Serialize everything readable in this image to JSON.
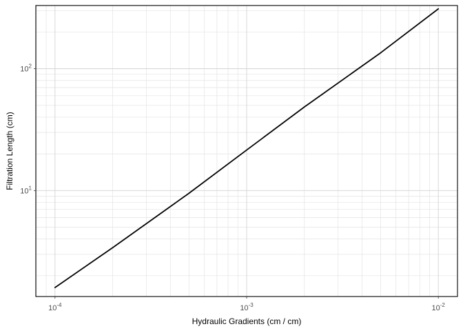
{
  "chart_data": {
    "type": "line",
    "title": "",
    "xlabel": "Hydraulic Gradients (cm / cm)",
    "ylabel": "Filtration Length (cm)",
    "x_scale": "log10",
    "y_scale": "log10",
    "xlim": [
      0.0001,
      0.01
    ],
    "ylim": [
      1.35,
      330
    ],
    "grid": true,
    "x_ticks": [
      {
        "base": "10",
        "exp": "-4",
        "value": 0.0001
      },
      {
        "base": "10",
        "exp": "-3",
        "value": 0.001
      },
      {
        "base": "10",
        "exp": "-2",
        "value": 0.01
      }
    ],
    "y_ticks": [
      {
        "base": "10",
        "exp": "1",
        "value": 10
      },
      {
        "base": "10",
        "exp": "2",
        "value": 100
      }
    ],
    "series": [
      {
        "color": "#000000",
        "x": [
          0.0001,
          0.0002,
          0.0005,
          0.001,
          0.002,
          0.005,
          0.01
        ],
        "y": [
          1.6,
          3.4,
          9.5,
          21.5,
          48.5,
          135,
          310
        ]
      }
    ]
  }
}
